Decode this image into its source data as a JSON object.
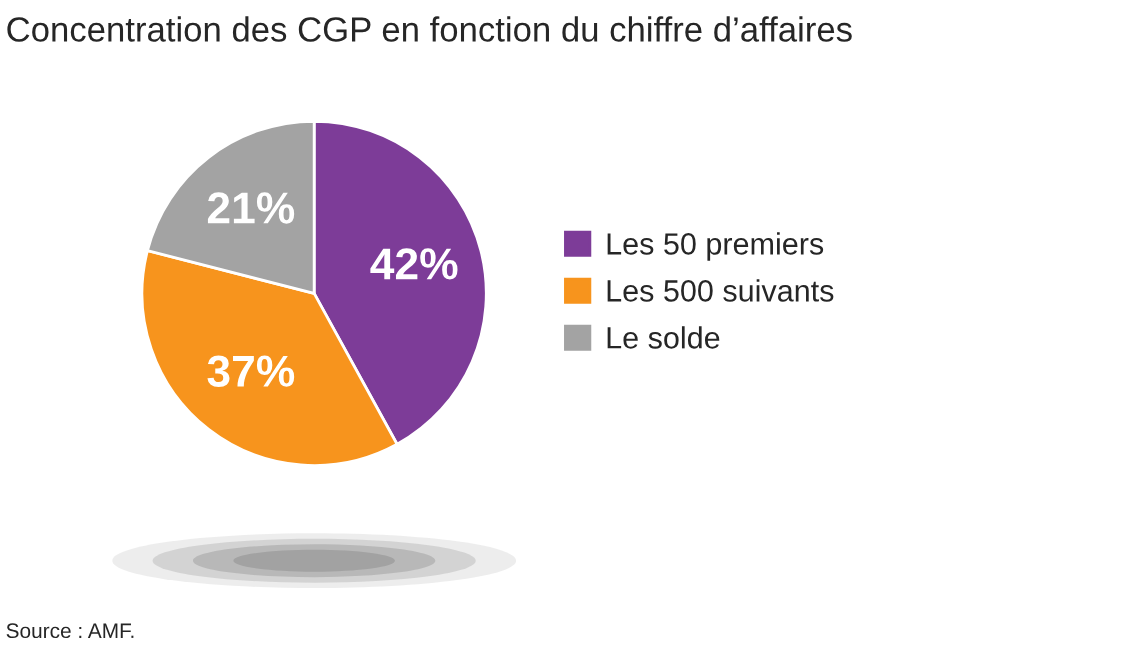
{
  "chart_data": {
    "type": "pie",
    "title": "Concentration des CGP en fonction du chiffre d’affaires",
    "categories": [
      "Les 50 premiers",
      "Les 500 suivants",
      "Le solde"
    ],
    "values": [
      42,
      37,
      21
    ],
    "colors": [
      "#7d3c98",
      "#f7941d",
      "#a3a3a3"
    ],
    "value_labels": [
      "42%",
      "37%",
      "21%"
    ],
    "legend": "right",
    "annotations": [
      "Source : AMF."
    ]
  }
}
